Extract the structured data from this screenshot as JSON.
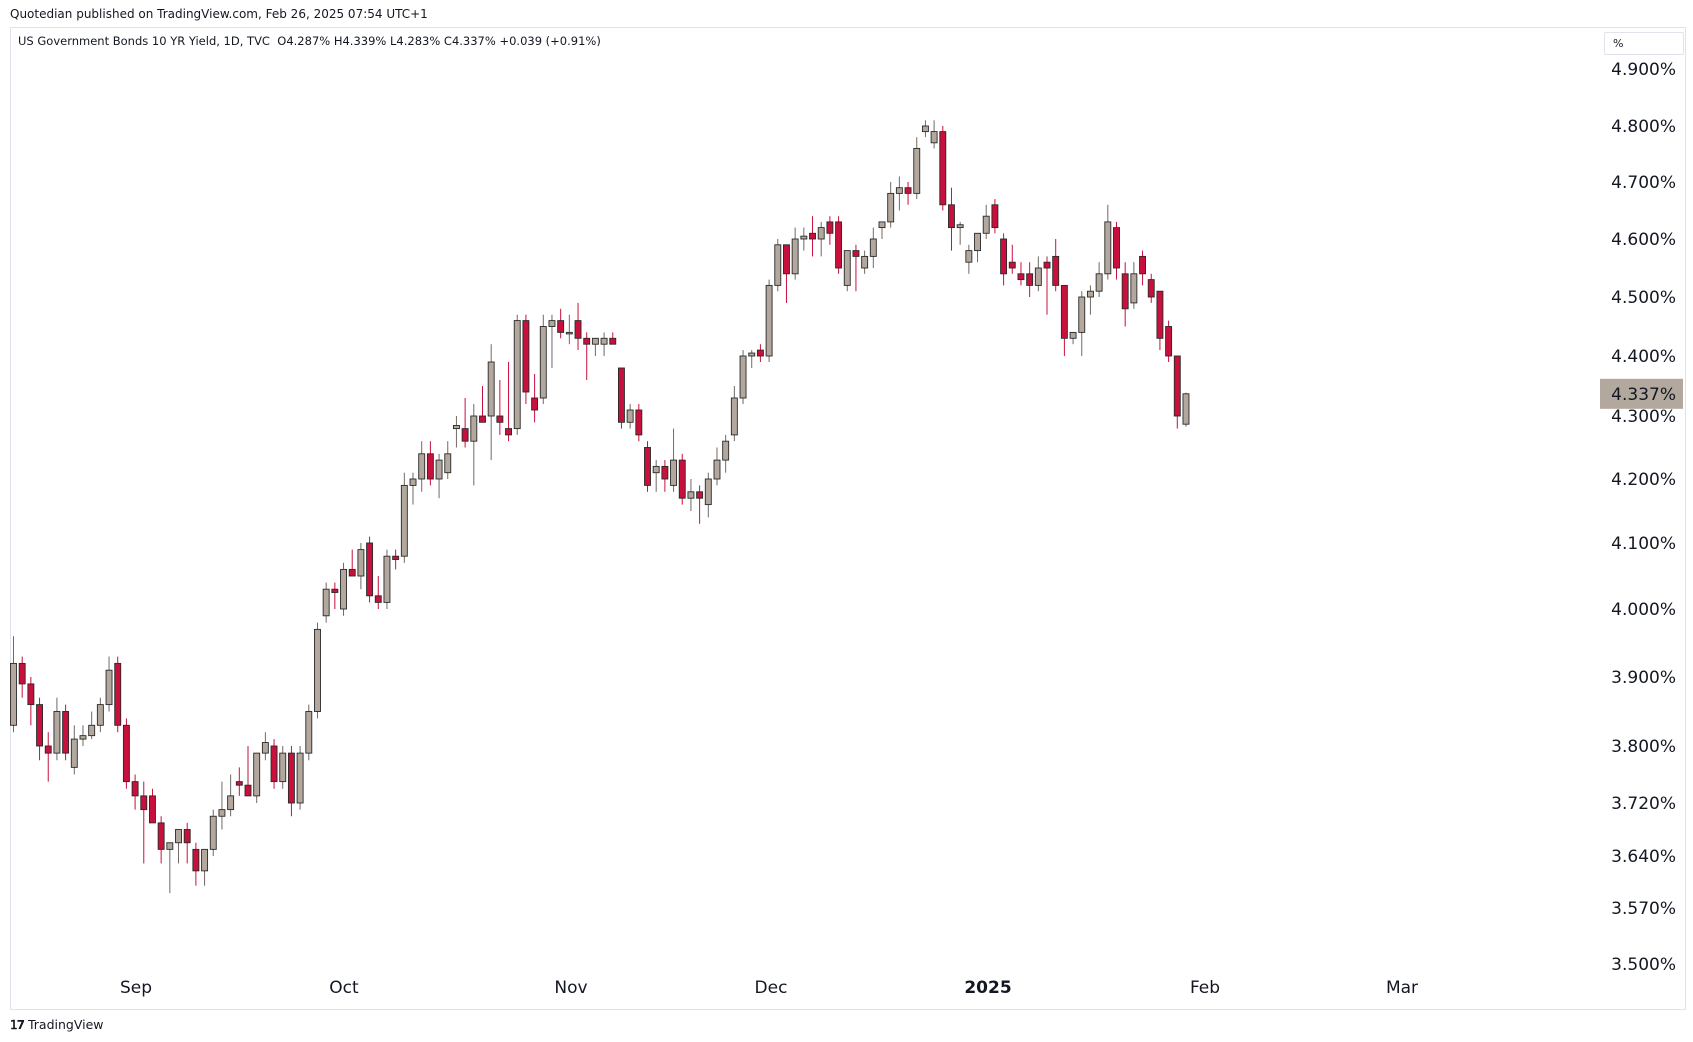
{
  "header": {
    "published": "Quotedian published on TradingView.com, Feb 26, 2025 07:54 UTC+1"
  },
  "legend": {
    "symbol": "US Government Bonds 10 YR Yield, 1D, TVC",
    "open": "O4.287%",
    "high": "H4.339%",
    "low": "L4.283%",
    "close": "C4.337%",
    "change": "+0.039 (+0.91%)"
  },
  "unit_label": "%",
  "footer": {
    "brand": "TradingView",
    "logo_icon": "tradingview-logo-icon"
  },
  "colors": {
    "up": "#b2a89e",
    "down": "#c8103c",
    "last_price_bg": "#b2a89e",
    "grid": "#ffffff"
  },
  "chart_data": {
    "type": "candlestick",
    "title": "US Government Bonds 10 YR Yield, 1D, TVC",
    "y_unit": "%",
    "ylim": [
      3.5,
      4.95
    ],
    "y_ticks": [
      "4.900%",
      "4.800%",
      "4.700%",
      "4.600%",
      "4.500%",
      "4.400%",
      "4.300%",
      "4.200%",
      "4.100%",
      "4.000%",
      "3.900%",
      "3.800%",
      "3.720%",
      "3.640%",
      "3.570%",
      "3.500%"
    ],
    "x_labels": [
      "Sep",
      "Oct",
      "Nov",
      "Dec",
      "2025",
      "Feb",
      "Mar"
    ],
    "last_price_label": "4.337%",
    "last_price": 4.337,
    "candles": [
      {
        "o": 3.83,
        "h": 3.96,
        "l": 3.82,
        "c": 3.92
      },
      {
        "o": 3.92,
        "h": 3.93,
        "l": 3.87,
        "c": 3.89
      },
      {
        "o": 3.89,
        "h": 3.9,
        "l": 3.83,
        "c": 3.86
      },
      {
        "o": 3.86,
        "h": 3.87,
        "l": 3.78,
        "c": 3.8
      },
      {
        "o": 3.8,
        "h": 3.82,
        "l": 3.75,
        "c": 3.79
      },
      {
        "o": 3.79,
        "h": 3.87,
        "l": 3.78,
        "c": 3.85
      },
      {
        "o": 3.85,
        "h": 3.86,
        "l": 3.78,
        "c": 3.79
      },
      {
        "o": 3.77,
        "h": 3.83,
        "l": 3.76,
        "c": 3.81
      },
      {
        "o": 3.81,
        "h": 3.83,
        "l": 3.8,
        "c": 3.815
      },
      {
        "o": 3.815,
        "h": 3.85,
        "l": 3.81,
        "c": 3.83
      },
      {
        "o": 3.83,
        "h": 3.87,
        "l": 3.82,
        "c": 3.86
      },
      {
        "o": 3.86,
        "h": 3.93,
        "l": 3.85,
        "c": 3.91
      },
      {
        "o": 3.92,
        "h": 3.93,
        "l": 3.82,
        "c": 3.83
      },
      {
        "o": 3.83,
        "h": 3.84,
        "l": 3.74,
        "c": 3.75
      },
      {
        "o": 3.75,
        "h": 3.76,
        "l": 3.71,
        "c": 3.73
      },
      {
        "o": 3.73,
        "h": 3.75,
        "l": 3.63,
        "c": 3.71
      },
      {
        "o": 3.73,
        "h": 3.74,
        "l": 3.7,
        "c": 3.69
      },
      {
        "o": 3.69,
        "h": 3.7,
        "l": 3.63,
        "c": 3.65
      },
      {
        "o": 3.65,
        "h": 3.66,
        "l": 3.59,
        "c": 3.66
      },
      {
        "o": 3.66,
        "h": 3.68,
        "l": 3.63,
        "c": 3.68
      },
      {
        "o": 3.68,
        "h": 3.69,
        "l": 3.63,
        "c": 3.66
      },
      {
        "o": 3.65,
        "h": 3.66,
        "l": 3.6,
        "c": 3.62
      },
      {
        "o": 3.62,
        "h": 3.65,
        "l": 3.6,
        "c": 3.65
      },
      {
        "o": 3.65,
        "h": 3.71,
        "l": 3.64,
        "c": 3.7
      },
      {
        "o": 3.7,
        "h": 3.75,
        "l": 3.68,
        "c": 3.71
      },
      {
        "o": 3.71,
        "h": 3.76,
        "l": 3.7,
        "c": 3.73
      },
      {
        "o": 3.75,
        "h": 3.77,
        "l": 3.73,
        "c": 3.745
      },
      {
        "o": 3.745,
        "h": 3.8,
        "l": 3.73,
        "c": 3.73
      },
      {
        "o": 3.73,
        "h": 3.78,
        "l": 3.72,
        "c": 3.79
      },
      {
        "o": 3.79,
        "h": 3.82,
        "l": 3.78,
        "c": 3.805
      },
      {
        "o": 3.8,
        "h": 3.81,
        "l": 3.74,
        "c": 3.75
      },
      {
        "o": 3.75,
        "h": 3.8,
        "l": 3.74,
        "c": 3.79
      },
      {
        "o": 3.79,
        "h": 3.8,
        "l": 3.7,
        "c": 3.72
      },
      {
        "o": 3.72,
        "h": 3.8,
        "l": 3.71,
        "c": 3.79
      },
      {
        "o": 3.79,
        "h": 3.86,
        "l": 3.78,
        "c": 3.85
      },
      {
        "o": 3.85,
        "h": 3.98,
        "l": 3.84,
        "c": 3.97
      },
      {
        "o": 3.99,
        "h": 4.04,
        "l": 3.98,
        "c": 4.03
      },
      {
        "o": 4.03,
        "h": 4.04,
        "l": 4.0,
        "c": 4.025
      },
      {
        "o": 4.0,
        "h": 4.07,
        "l": 3.99,
        "c": 4.06
      },
      {
        "o": 4.06,
        "h": 4.09,
        "l": 4.05,
        "c": 4.05
      },
      {
        "o": 4.05,
        "h": 4.1,
        "l": 4.03,
        "c": 4.09
      },
      {
        "o": 4.1,
        "h": 4.11,
        "l": 4.01,
        "c": 4.02
      },
      {
        "o": 4.02,
        "h": 4.05,
        "l": 4.0,
        "c": 4.01
      },
      {
        "o": 4.01,
        "h": 4.09,
        "l": 4.0,
        "c": 4.08
      },
      {
        "o": 4.08,
        "h": 4.09,
        "l": 4.06,
        "c": 4.075
      },
      {
        "o": 4.08,
        "h": 4.21,
        "l": 4.07,
        "c": 4.19
      },
      {
        "o": 4.19,
        "h": 4.21,
        "l": 4.16,
        "c": 4.2
      },
      {
        "o": 4.2,
        "h": 4.26,
        "l": 4.18,
        "c": 4.24
      },
      {
        "o": 4.24,
        "h": 4.26,
        "l": 4.19,
        "c": 4.2
      },
      {
        "o": 4.2,
        "h": 4.24,
        "l": 4.17,
        "c": 4.23
      },
      {
        "o": 4.21,
        "h": 4.26,
        "l": 4.2,
        "c": 4.24
      },
      {
        "o": 4.28,
        "h": 4.3,
        "l": 4.25,
        "c": 4.285
      },
      {
        "o": 4.28,
        "h": 4.33,
        "l": 4.25,
        "c": 4.26
      },
      {
        "o": 4.26,
        "h": 4.32,
        "l": 4.19,
        "c": 4.3
      },
      {
        "o": 4.3,
        "h": 4.35,
        "l": 4.29,
        "c": 4.29
      },
      {
        "o": 4.3,
        "h": 4.42,
        "l": 4.23,
        "c": 4.39
      },
      {
        "o": 4.3,
        "h": 4.36,
        "l": 4.27,
        "c": 4.29
      },
      {
        "o": 4.28,
        "h": 4.39,
        "l": 4.26,
        "c": 4.27
      },
      {
        "o": 4.28,
        "h": 4.47,
        "l": 4.27,
        "c": 4.46
      },
      {
        "o": 4.46,
        "h": 4.47,
        "l": 4.32,
        "c": 4.34
      },
      {
        "o": 4.33,
        "h": 4.37,
        "l": 4.29,
        "c": 4.31
      },
      {
        "o": 4.33,
        "h": 4.47,
        "l": 4.32,
        "c": 4.45
      },
      {
        "o": 4.45,
        "h": 4.47,
        "l": 4.38,
        "c": 4.46
      },
      {
        "o": 4.46,
        "h": 4.48,
        "l": 4.43,
        "c": 4.44
      },
      {
        "o": 4.44,
        "h": 4.47,
        "l": 4.42,
        "c": 4.44
      },
      {
        "o": 4.46,
        "h": 4.49,
        "l": 4.41,
        "c": 4.43
      },
      {
        "o": 4.43,
        "h": 4.44,
        "l": 4.36,
        "c": 4.42
      },
      {
        "o": 4.42,
        "h": 4.43,
        "l": 4.4,
        "c": 4.43
      },
      {
        "o": 4.42,
        "h": 4.44,
        "l": 4.4,
        "c": 4.43
      },
      {
        "o": 4.43,
        "h": 4.44,
        "l": 4.42,
        "c": 4.42
      },
      {
        "o": 4.38,
        "h": 4.38,
        "l": 4.28,
        "c": 4.29
      },
      {
        "o": 4.29,
        "h": 4.32,
        "l": 4.28,
        "c": 4.31
      },
      {
        "o": 4.31,
        "h": 4.32,
        "l": 4.26,
        "c": 4.27
      },
      {
        "o": 4.25,
        "h": 4.26,
        "l": 4.18,
        "c": 4.19
      },
      {
        "o": 4.21,
        "h": 4.23,
        "l": 4.18,
        "c": 4.22
      },
      {
        "o": 4.22,
        "h": 4.23,
        "l": 4.18,
        "c": 4.2
      },
      {
        "o": 4.19,
        "h": 4.28,
        "l": 4.18,
        "c": 4.23
      },
      {
        "o": 4.23,
        "h": 4.24,
        "l": 4.16,
        "c": 4.17
      },
      {
        "o": 4.17,
        "h": 4.2,
        "l": 4.15,
        "c": 4.18
      },
      {
        "o": 4.18,
        "h": 4.19,
        "l": 4.13,
        "c": 4.17
      },
      {
        "o": 4.16,
        "h": 4.21,
        "l": 4.14,
        "c": 4.2
      },
      {
        "o": 4.2,
        "h": 4.25,
        "l": 4.19,
        "c": 4.23
      },
      {
        "o": 4.23,
        "h": 4.27,
        "l": 4.21,
        "c": 4.26
      },
      {
        "o": 4.27,
        "h": 4.35,
        "l": 4.26,
        "c": 4.33
      },
      {
        "o": 4.33,
        "h": 4.41,
        "l": 4.32,
        "c": 4.4
      },
      {
        "o": 4.4,
        "h": 4.41,
        "l": 4.38,
        "c": 4.405
      },
      {
        "o": 4.41,
        "h": 4.42,
        "l": 4.39,
        "c": 4.4
      },
      {
        "o": 4.4,
        "h": 4.53,
        "l": 4.39,
        "c": 4.52
      },
      {
        "o": 4.52,
        "h": 4.6,
        "l": 4.51,
        "c": 4.59
      },
      {
        "o": 4.59,
        "h": 4.59,
        "l": 4.49,
        "c": 4.54
      },
      {
        "o": 4.54,
        "h": 4.62,
        "l": 4.53,
        "c": 4.6
      },
      {
        "o": 4.6,
        "h": 4.62,
        "l": 4.58,
        "c": 4.605
      },
      {
        "o": 4.61,
        "h": 4.64,
        "l": 4.57,
        "c": 4.6
      },
      {
        "o": 4.6,
        "h": 4.63,
        "l": 4.57,
        "c": 4.62
      },
      {
        "o": 4.63,
        "h": 4.64,
        "l": 4.59,
        "c": 4.61
      },
      {
        "o": 4.63,
        "h": 4.64,
        "l": 4.54,
        "c": 4.55
      },
      {
        "o": 4.52,
        "h": 4.57,
        "l": 4.51,
        "c": 4.58
      },
      {
        "o": 4.58,
        "h": 4.59,
        "l": 4.51,
        "c": 4.57
      },
      {
        "o": 4.55,
        "h": 4.58,
        "l": 4.54,
        "c": 4.57
      },
      {
        "o": 4.57,
        "h": 4.62,
        "l": 4.55,
        "c": 4.6
      },
      {
        "o": 4.62,
        "h": 4.63,
        "l": 4.6,
        "c": 4.63
      },
      {
        "o": 4.63,
        "h": 4.7,
        "l": 4.62,
        "c": 4.68
      },
      {
        "o": 4.68,
        "h": 4.71,
        "l": 4.65,
        "c": 4.69
      },
      {
        "o": 4.69,
        "h": 4.7,
        "l": 4.66,
        "c": 4.68
      },
      {
        "o": 4.68,
        "h": 4.78,
        "l": 4.67,
        "c": 4.76
      },
      {
        "o": 4.79,
        "h": 4.81,
        "l": 4.78,
        "c": 4.8
      },
      {
        "o": 4.77,
        "h": 4.81,
        "l": 4.76,
        "c": 4.79
      },
      {
        "o": 4.79,
        "h": 4.8,
        "l": 4.65,
        "c": 4.66
      },
      {
        "o": 4.66,
        "h": 4.69,
        "l": 4.58,
        "c": 4.62
      },
      {
        "o": 4.62,
        "h": 4.63,
        "l": 4.59,
        "c": 4.625
      },
      {
        "o": 4.56,
        "h": 4.59,
        "l": 4.54,
        "c": 4.58
      },
      {
        "o": 4.58,
        "h": 4.61,
        "l": 4.56,
        "c": 4.61
      },
      {
        "o": 4.61,
        "h": 4.66,
        "l": 4.6,
        "c": 4.64
      },
      {
        "o": 4.66,
        "h": 4.67,
        "l": 4.61,
        "c": 4.62
      },
      {
        "o": 4.6,
        "h": 4.61,
        "l": 4.52,
        "c": 4.54
      },
      {
        "o": 4.56,
        "h": 4.59,
        "l": 4.54,
        "c": 4.55
      },
      {
        "o": 4.54,
        "h": 4.56,
        "l": 4.52,
        "c": 4.53
      },
      {
        "o": 4.54,
        "h": 4.56,
        "l": 4.5,
        "c": 4.52
      },
      {
        "o": 4.52,
        "h": 4.57,
        "l": 4.51,
        "c": 4.55
      },
      {
        "o": 4.56,
        "h": 4.57,
        "l": 4.47,
        "c": 4.55
      },
      {
        "o": 4.57,
        "h": 4.6,
        "l": 4.51,
        "c": 4.52
      },
      {
        "o": 4.52,
        "h": 4.52,
        "l": 4.4,
        "c": 4.43
      },
      {
        "o": 4.43,
        "h": 4.44,
        "l": 4.42,
        "c": 4.44
      },
      {
        "o": 4.44,
        "h": 4.51,
        "l": 4.4,
        "c": 4.5
      },
      {
        "o": 4.5,
        "h": 4.52,
        "l": 4.47,
        "c": 4.51
      },
      {
        "o": 4.51,
        "h": 4.56,
        "l": 4.5,
        "c": 4.54
      },
      {
        "o": 4.54,
        "h": 4.66,
        "l": 4.53,
        "c": 4.63
      },
      {
        "o": 4.62,
        "h": 4.63,
        "l": 4.53,
        "c": 4.55
      },
      {
        "o": 4.54,
        "h": 4.56,
        "l": 4.45,
        "c": 4.48
      },
      {
        "o": 4.49,
        "h": 4.56,
        "l": 4.48,
        "c": 4.54
      },
      {
        "o": 4.57,
        "h": 4.58,
        "l": 4.52,
        "c": 4.54
      },
      {
        "o": 4.53,
        "h": 4.54,
        "l": 4.49,
        "c": 4.5
      },
      {
        "o": 4.51,
        "h": 4.51,
        "l": 4.41,
        "c": 4.43
      },
      {
        "o": 4.45,
        "h": 4.46,
        "l": 4.39,
        "c": 4.4
      },
      {
        "o": 4.4,
        "h": 4.4,
        "l": 4.28,
        "c": 4.3
      },
      {
        "o": 4.287,
        "h": 4.339,
        "l": 4.283,
        "c": 4.337
      }
    ]
  }
}
